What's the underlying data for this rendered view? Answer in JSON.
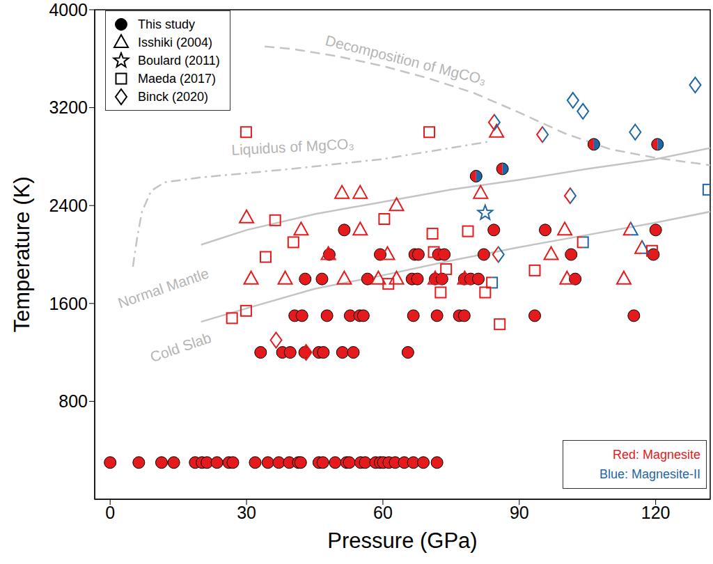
{
  "chart_data": {
    "type": "scatter",
    "x_label": "Pressure (GPa)",
    "y_label": "Temperature (K)",
    "xlim": [
      -3.4,
      132
    ],
    "xticks": [
      0,
      30,
      60,
      90,
      120
    ],
    "ylim": [
      0,
      4000
    ],
    "yticks": [
      800,
      1600,
      2400,
      3200,
      4000
    ],
    "legend": "upper left",
    "series": [
      {
        "name": "This study",
        "marker": "filled-circle",
        "x": [
          0,
          6.3,
          11.3,
          14,
          18.7,
          20.2,
          21.3,
          23.5,
          26.1,
          27,
          31.9,
          34.7,
          37.1,
          39.4,
          41.4,
          41.9,
          45.9,
          46.8,
          49.5,
          52,
          52.6,
          55.1,
          56.1,
          58.4,
          59.4,
          60.1,
          61.3,
          62.7,
          64.7,
          66.7,
          68.9,
          71.9,
          33.1,
          37.9,
          39.6,
          42.8,
          45.9,
          46.9,
          51.1,
          53.5,
          65.5,
          40.6,
          42.2,
          47.7,
          52.8,
          54.9,
          55.7,
          66.7,
          71.9,
          76.8,
          77.9,
          93.4,
          115.2,
          42.9,
          46.6,
          56.6,
          66.4,
          67.6,
          71.5,
          73,
          77.9,
          79.3,
          81,
          102.3,
          48.2,
          59.4,
          67,
          67.8,
          72.2,
          73.5,
          82.2,
          101.4,
          119.5,
          51.5,
          84.4,
          95.7,
          120,
          80.5,
          86.3,
          106.4,
          120.4
        ],
        "values": [
          300,
          300,
          300,
          300,
          300,
          300,
          300,
          300,
          300,
          300,
          300,
          300,
          300,
          300,
          300,
          300,
          300,
          300,
          300,
          300,
          300,
          300,
          300,
          300,
          300,
          300,
          300,
          300,
          300,
          300,
          300,
          300,
          1200,
          1200,
          1200,
          1200,
          1200,
          1200,
          1200,
          1200,
          1200,
          1500,
          1500,
          1500,
          1500,
          1500,
          1500,
          1500,
          1500,
          1500,
          1500,
          1500,
          1500,
          1800,
          1800,
          1800,
          1800,
          1800,
          1800,
          1800,
          1800,
          1800,
          1800,
          1800,
          2000,
          2000,
          2000,
          2000,
          2000,
          2000,
          2000,
          2000,
          2000,
          2200,
          2200,
          2200,
          2200,
          2640,
          2700,
          2900,
          2900
        ],
        "colors": [
          "#e41a1c",
          "#e41a1c",
          "#e41a1c",
          "#e41a1c",
          "#e41a1c",
          "#e41a1c",
          "#e41a1c",
          "#e41a1c",
          "#e41a1c",
          "#e41a1c",
          "#e41a1c",
          "#e41a1c",
          "#e41a1c",
          "#e41a1c",
          "#e41a1c",
          "#e41a1c",
          "#e41a1c",
          "#e41a1c",
          "#e41a1c",
          "#e41a1c",
          "#e41a1c",
          "#e41a1c",
          "#e41a1c",
          "#e41a1c",
          "#e41a1c",
          "#e41a1c",
          "#e41a1c",
          "#e41a1c",
          "#e41a1c",
          "#e41a1c",
          "#e41a1c",
          "#e41a1c",
          "#e41a1c",
          "#e41a1c",
          "#e41a1c",
          "#e41a1c",
          "#e41a1c",
          "#e41a1c",
          "#e41a1c",
          "#e41a1c",
          "#e41a1c",
          "#e41a1c",
          "#e41a1c",
          "#e41a1c",
          "#e41a1c",
          "#e41a1c",
          "#e41a1c",
          "#e41a1c",
          "#e41a1c",
          "#e41a1c",
          "#e41a1c",
          "#e41a1c",
          "#e41a1c",
          "#e41a1c",
          "#e41a1c",
          "#e41a1c",
          "#e41a1c",
          "#e41a1c",
          "#e41a1c",
          "#e41a1c",
          "#e41a1c",
          "#e41a1c",
          "#e41a1c",
          "#e41a1c",
          "#e41a1c",
          "#e41a1c",
          "#e41a1c",
          "#e41a1c",
          "#e41a1c",
          "#e41a1c",
          "#e41a1c",
          "#e41a1c",
          "#e41a1c",
          "#e41a1c",
          "#e41a1c",
          "#e41a1c",
          "#e41a1c",
          [
            "#e41a1c",
            "#1f66a6"
          ],
          [
            "#e41a1c",
            "#1f66a6"
          ],
          [
            "#e41a1c",
            "#1f66a6"
          ],
          [
            "#e41a1c",
            "#1f66a6"
          ]
        ]
      },
      {
        "name": "Isshiki (2004)",
        "marker": "open-triangle",
        "x": [
          30,
          31,
          38.5,
          42,
          48,
          51,
          51.5,
          55,
          55,
          59,
          61,
          63,
          63,
          71.5,
          78,
          81.5,
          85,
          97,
          100,
          100.5,
          113,
          114.5,
          117
        ],
        "values": [
          2300,
          1800,
          1800,
          2200,
          2000,
          2500,
          1800,
          2500,
          2200,
          1800,
          2000,
          2400,
          1800,
          1800,
          1800,
          2500,
          3000,
          2000,
          2200,
          1800,
          1800,
          2200,
          2050
        ],
        "colors": [
          "#e41a1c",
          "#e41a1c",
          "#e41a1c",
          "#e41a1c",
          "#e41a1c",
          "#e41a1c",
          "#e41a1c",
          "#e41a1c",
          "#e41a1c",
          "#e41a1c",
          "#e41a1c",
          "#e41a1c",
          "#e41a1c",
          "#e41a1c",
          "#e41a1c",
          "#e41a1c",
          "#e41a1c",
          "#e41a1c",
          "#e41a1c",
          "#e41a1c",
          "#e41a1c",
          [
            "#e41a1c",
            "#1f66a6"
          ],
          [
            "#e41a1c",
            "#1f66a6"
          ]
        ]
      },
      {
        "name": "Boulard (2011)",
        "marker": "open-star",
        "x": [
          82.5
        ],
        "values": [
          2340
        ],
        "colors": [
          "#1f66a6"
        ]
      },
      {
        "name": "Maeda (2017)",
        "marker": "open-square",
        "x": [
          26.8,
          29.9,
          29.9,
          34.2,
          36.3,
          40.3,
          60.3,
          61.2,
          70.2,
          70.9,
          71.2,
          72.7,
          73.9,
          78.7,
          82.5,
          84,
          85.7,
          93.4,
          104,
          119.2,
          131.6
        ],
        "values": [
          1480,
          1540,
          3000,
          1980,
          2280,
          2100,
          2290,
          1760,
          3000,
          2170,
          2020,
          1690,
          1880,
          2190,
          1690,
          1770,
          1430,
          1870,
          2100,
          2030,
          2530
        ],
        "colors": [
          "#e41a1c",
          "#e41a1c",
          "#e41a1c",
          "#e41a1c",
          "#e41a1c",
          "#e41a1c",
          "#e41a1c",
          "#e41a1c",
          "#e41a1c",
          "#e41a1c",
          "#e41a1c",
          "#e41a1c",
          "#e41a1c",
          "#e41a1c",
          "#e41a1c",
          [
            "#e41a1c",
            "#1f66a6"
          ],
          "#e41a1c",
          "#e41a1c",
          [
            "#e41a1c",
            "#1f66a6"
          ],
          "#e41a1c",
          "#1f66a6"
        ]
      },
      {
        "name": "Binck (2020)",
        "marker": "open-diamond",
        "x": [
          36.5,
          43.1,
          84.5,
          85.4,
          95.1,
          101.2,
          101.8,
          104,
          115.5,
          128.7
        ],
        "values": [
          1300,
          1200,
          3080,
          2000,
          2980,
          2480,
          3260,
          3170,
          3000,
          3385
        ],
        "colors": [
          "#e41a1c",
          "#e41a1c",
          [
            "#e41a1c",
            "#1f66a6"
          ],
          [
            "#e41a1c",
            "#1f66a6"
          ],
          [
            "#e41a1c",
            "#1f66a6"
          ],
          [
            "#e41a1c",
            "#1f66a6"
          ],
          "#1f66a6",
          "#1f66a6",
          "#1f66a6",
          "#1f66a6"
        ]
      }
    ],
    "curves": [
      {
        "label": "Decomposition of MgCO₃",
        "line_style": "dashed",
        "color": "#c4c4c4",
        "x": [
          34,
          40,
          50,
          60,
          70,
          80,
          90,
          100,
          110,
          120,
          132
        ],
        "values": [
          3700,
          3680,
          3620,
          3540,
          3440,
          3320,
          3160,
          2990,
          2860,
          2790,
          2730
        ],
        "label_x": 65,
        "label_y": 3580
      },
      {
        "label": "Liquidus of MgCO₃",
        "line_style": "dashdot",
        "color": "#c4c4c4",
        "x": [
          5,
          6,
          7,
          9,
          12,
          20,
          40,
          60,
          83
        ],
        "values": [
          1900,
          2150,
          2350,
          2520,
          2590,
          2630,
          2700,
          2780,
          2920
        ],
        "label_x": 40.2,
        "label_y": 2870
      },
      {
        "label": "Normal Mantle",
        "line_style": "solid",
        "color": "#c4c4c4",
        "x": [
          20,
          30,
          45,
          60,
          75,
          90,
          105,
          120,
          132
        ],
        "values": [
          2080,
          2200,
          2330,
          2430,
          2530,
          2610,
          2700,
          2780,
          2870
        ],
        "label_x": 11.8,
        "label_y": 1716
      },
      {
        "label": "Cold Slab",
        "line_style": "solid",
        "color": "#c4c4c4",
        "x": [
          20,
          30,
          45,
          60,
          75,
          90,
          105,
          120,
          132
        ],
        "values": [
          1450,
          1560,
          1720,
          1830,
          1950,
          2060,
          2160,
          2260,
          2350
        ],
        "label_x": 15.6,
        "label_y": 1232
      }
    ],
    "color_key": [
      {
        "label": "Red: Magnesite",
        "color": "#e41a1c"
      },
      {
        "label": "Blue: Magnesite-II",
        "color": "#1f66a6"
      }
    ]
  }
}
